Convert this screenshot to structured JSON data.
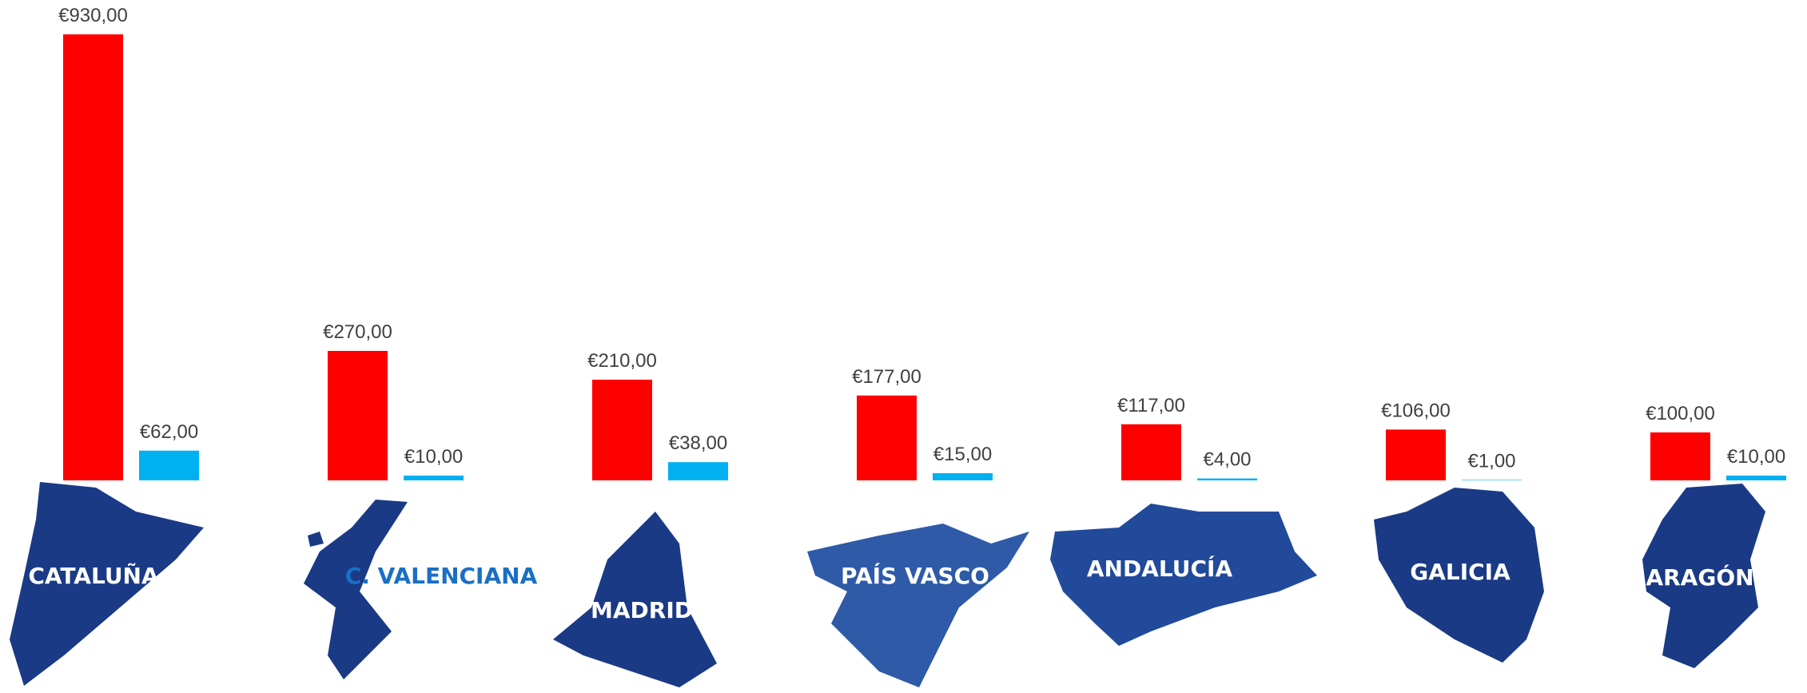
{
  "chart_data": {
    "type": "bar",
    "categories": [
      "CATALUÑA",
      "C. VALENCIANA",
      "MADRID",
      "PAÍS VASCO",
      "ANDALUCÍA",
      "GALICIA",
      "ARAGÓN"
    ],
    "category_label_colors": [
      "#ffffff",
      "#1a6fc4",
      "#ffffff",
      "#ffffff",
      "#ffffff",
      "#ffffff",
      "#ffffff"
    ],
    "series": [
      {
        "color": "#ff0000",
        "values": [
          930,
          270,
          210,
          177,
          117,
          106,
          100
        ],
        "value_labels": [
          "€930,00",
          "€270,00",
          "€210,00",
          "€177,00",
          "€117,00",
          "€106,00",
          "€100,00"
        ]
      },
      {
        "color": "#00b0f0",
        "values": [
          62,
          10,
          38,
          15,
          4,
          1,
          10
        ],
        "value_labels": [
          "€62,00",
          "€10,00",
          "€38,00",
          "€15,00",
          "€4,00",
          "€1,00",
          "€10,00"
        ]
      }
    ]
  }
}
